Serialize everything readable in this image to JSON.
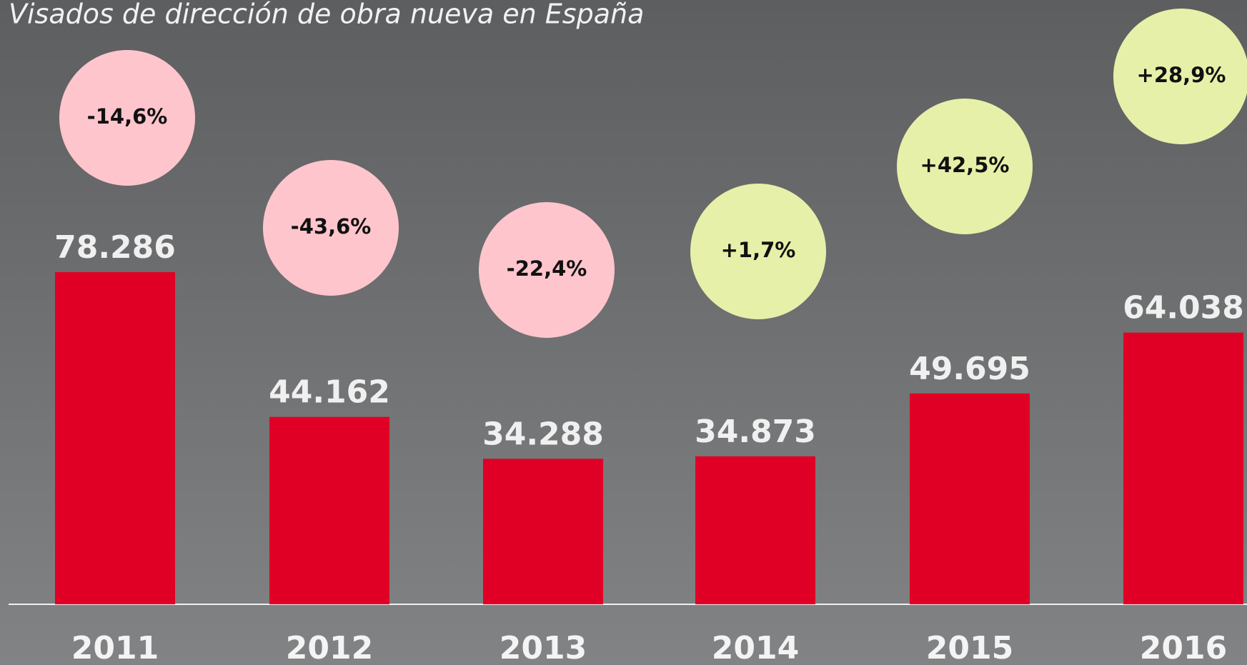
{
  "chart_data": {
    "type": "bar",
    "title": "Visados de dirección de obra nueva en España",
    "categories": [
      "2011",
      "2012",
      "2013",
      "2014",
      "2015",
      "2016"
    ],
    "values": [
      78286,
      44162,
      34288,
      34873,
      49695,
      64038
    ],
    "value_labels": [
      "78.286",
      "44.162",
      "34.288",
      "34.873",
      "49.695",
      "64.038"
    ],
    "color": "#e00025",
    "changes": {
      "values": [
        -14.6,
        -43.6,
        -22.4,
        1.7,
        42.5,
        28.9
      ],
      "value_labels": [
        "-14,6%",
        "-43,6%",
        "-22,4%",
        "+1,7%",
        "+42,5%",
        "+28,9%"
      ],
      "negative_color": "#ffc5cc",
      "positive_color": "#e6f0a8"
    }
  }
}
